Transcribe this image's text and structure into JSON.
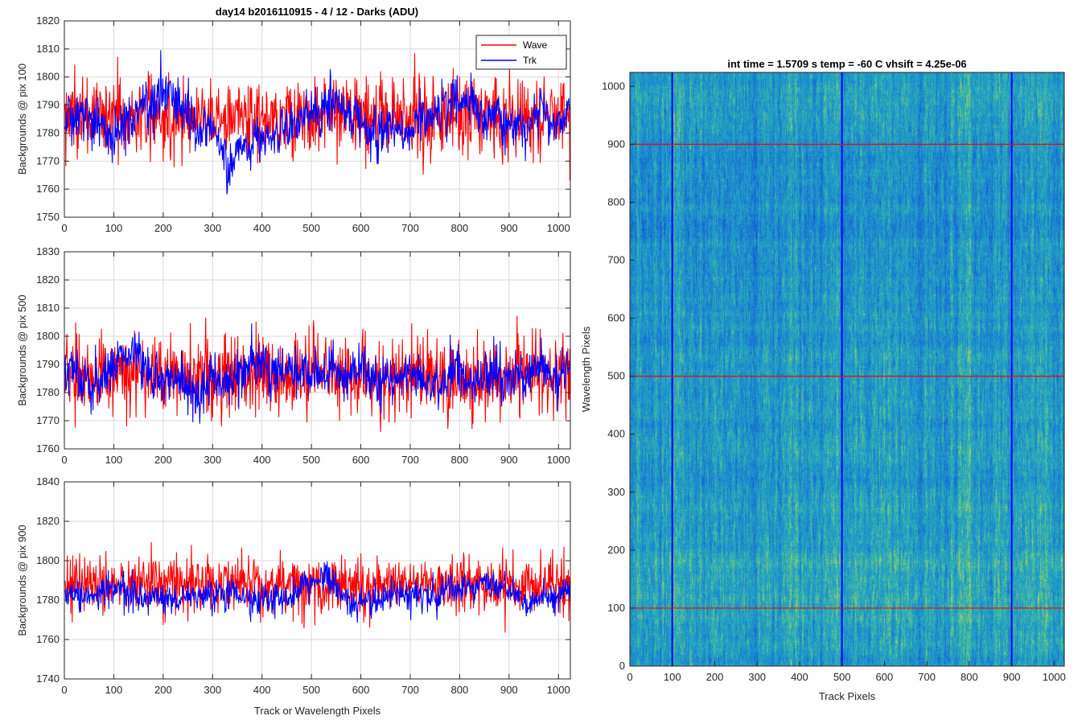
{
  "figure": {
    "title": "day14 b2016110915 - 4 / 12 - Darks (ADU)",
    "image_title": "int time = 1.5709 s    temp = -60 C    vhsift = 4.25e-06"
  },
  "colors": {
    "wave": "#ff0000",
    "trk": "#0000ff",
    "grid": "#d9d9d9",
    "axis": "#262626",
    "heatmap_base": "#1f9ec8",
    "heatmap_light": "#5ec4a8",
    "heatmap_dark": "#1a70c8"
  },
  "legend": {
    "entries": [
      {
        "label": "Wave",
        "color": "#ff0000"
      },
      {
        "label": "Trk",
        "color": "#0000ff"
      }
    ],
    "placement": "top-right of top subplot"
  },
  "chart_data": [
    {
      "type": "line",
      "ylabel": "Backgrounds @ pix 100",
      "xlabel": "",
      "xlim": [
        0,
        1024
      ],
      "ylim": [
        1750,
        1820
      ],
      "xticks": [
        0,
        100,
        200,
        300,
        400,
        500,
        600,
        700,
        800,
        900,
        1000
      ],
      "yticks": [
        1750,
        1760,
        1770,
        1780,
        1790,
        1800,
        1810,
        1820
      ],
      "grid": true,
      "series": [
        {
          "name": "Wave",
          "mean": 1786,
          "noise_sd": 7,
          "n": 1024
        },
        {
          "name": "Trk",
          "mean": 1786,
          "noise_sd": 4,
          "drift_amplitude": 6,
          "n": 1024
        }
      ]
    },
    {
      "type": "line",
      "ylabel": "Backgrounds @ pix 500",
      "xlabel": "",
      "xlim": [
        0,
        1024
      ],
      "ylim": [
        1760,
        1830
      ],
      "xticks": [
        0,
        100,
        200,
        300,
        400,
        500,
        600,
        700,
        800,
        900,
        1000
      ],
      "yticks": [
        1760,
        1770,
        1780,
        1790,
        1800,
        1810,
        1820,
        1830
      ],
      "grid": true,
      "series": [
        {
          "name": "Wave",
          "mean": 1786,
          "noise_sd": 7,
          "n": 1024
        },
        {
          "name": "Trk",
          "mean": 1785,
          "noise_sd": 4,
          "drift_amplitude": 4,
          "n": 1024
        }
      ]
    },
    {
      "type": "line",
      "ylabel": "Backgrounds @ pix 900",
      "xlabel": "Track or Wavelength Pixels",
      "xlim": [
        0,
        1024
      ],
      "ylim": [
        1740,
        1840
      ],
      "xticks": [
        0,
        100,
        200,
        300,
        400,
        500,
        600,
        700,
        800,
        900,
        1000
      ],
      "yticks": [
        1740,
        1760,
        1780,
        1800,
        1820,
        1840
      ],
      "grid": true,
      "series": [
        {
          "name": "Wave",
          "mean": 1788,
          "noise_sd": 7,
          "n": 1024
        },
        {
          "name": "Trk",
          "mean": 1784,
          "noise_sd": 4,
          "drift_amplitude": 3,
          "n": 1024
        }
      ]
    },
    {
      "type": "heatmap",
      "title": "int time = 1.5709 s    temp = -60 C    vhsift = 4.25e-06",
      "xlabel": "Track Pixels",
      "ylabel": "Wavelength Pixels",
      "xlim": [
        0,
        1024
      ],
      "ylim": [
        0,
        1024
      ],
      "xticks": [
        0,
        100,
        200,
        300,
        400,
        500,
        600,
        700,
        800,
        900,
        1000
      ],
      "yticks": [
        0,
        100,
        200,
        300,
        400,
        500,
        600,
        700,
        800,
        900,
        1000
      ],
      "markers": {
        "vertical_lines": {
          "values": [
            100,
            500,
            900
          ],
          "color": "#0000ff"
        },
        "horizontal_lines": {
          "values": [
            100,
            500,
            900
          ],
          "color": "#ff0000"
        }
      }
    }
  ]
}
